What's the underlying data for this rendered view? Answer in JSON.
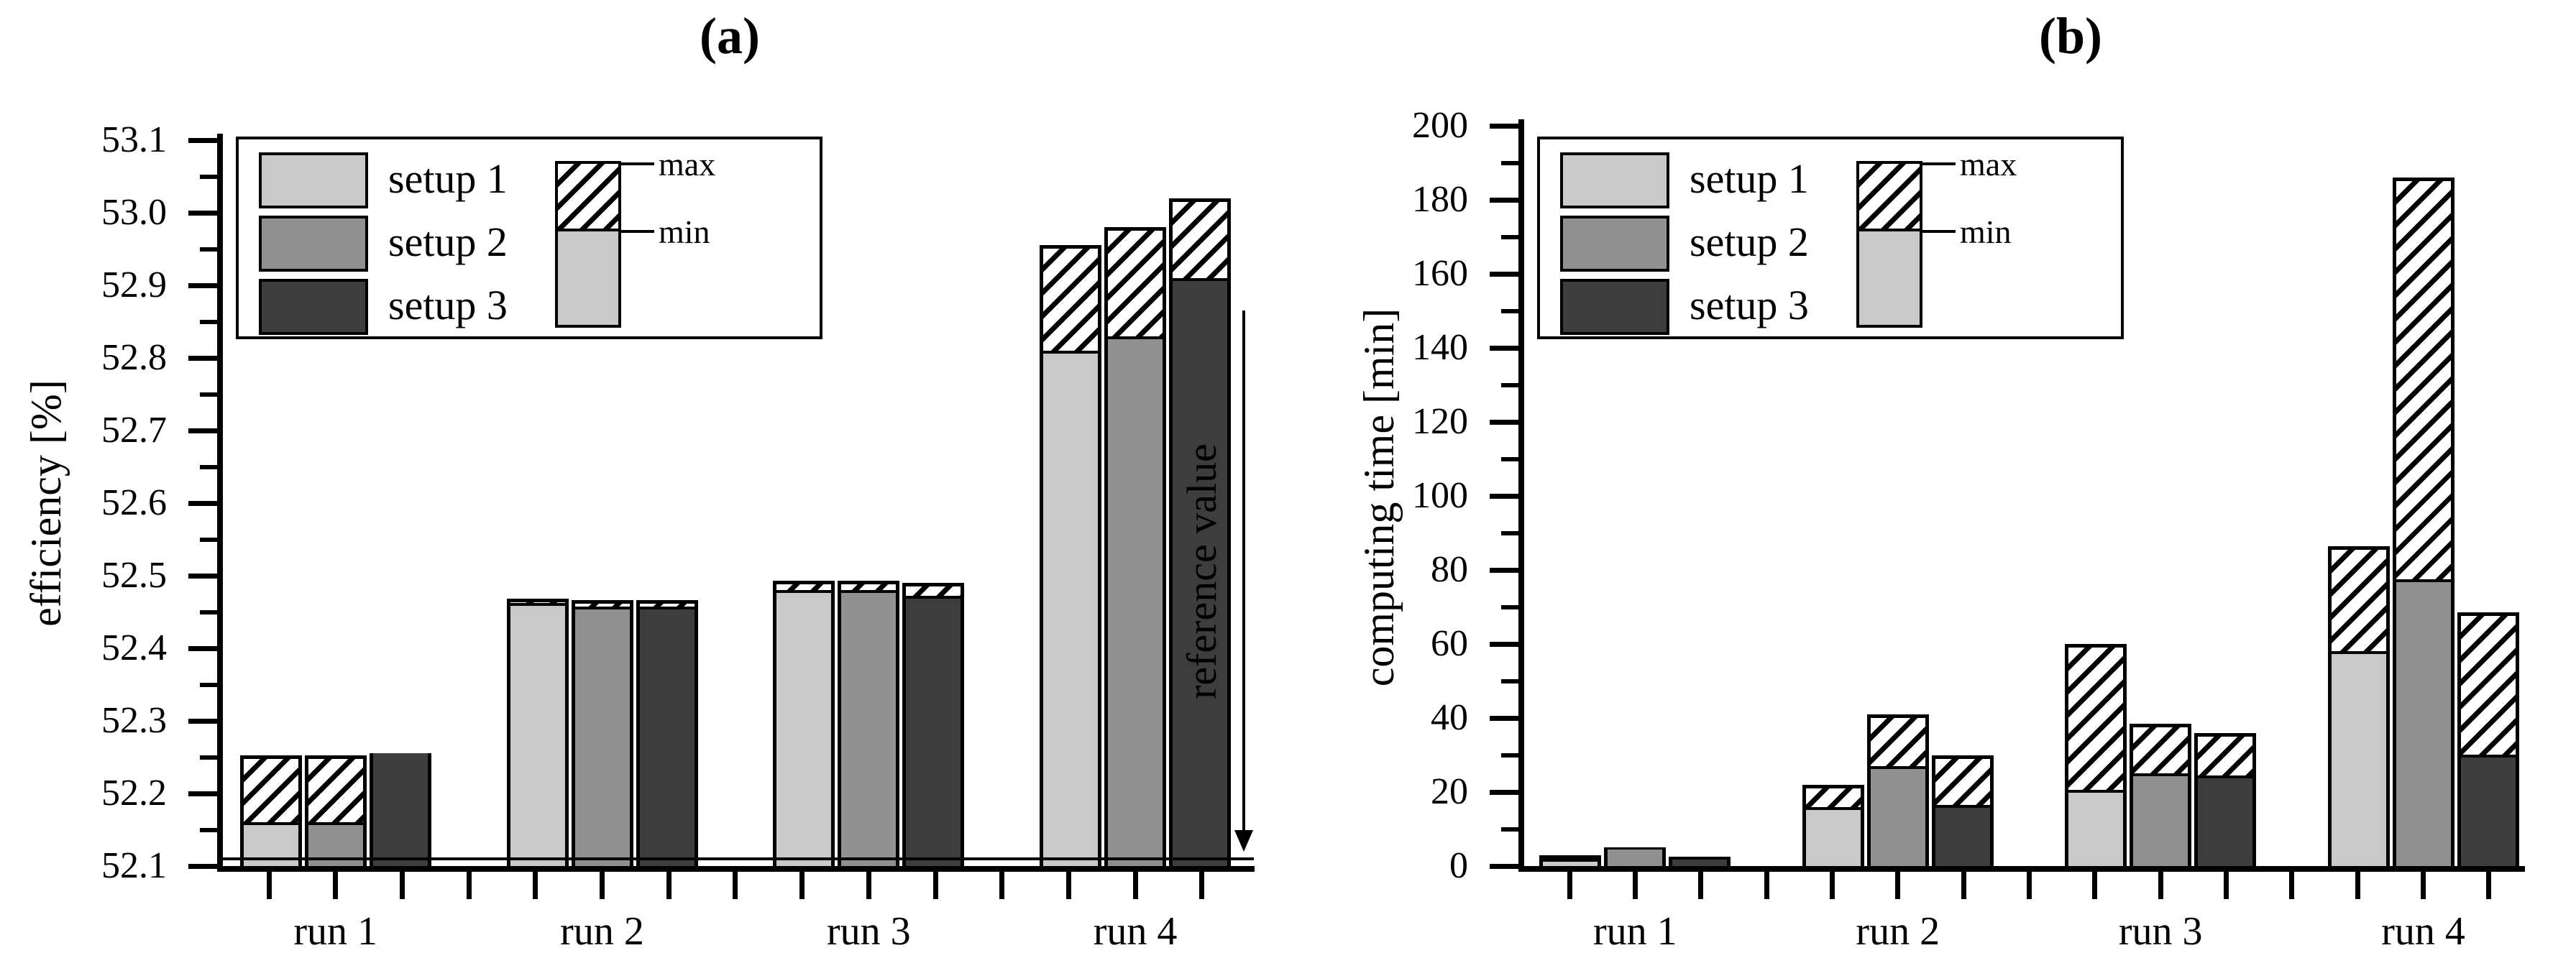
{
  "chart_data": {
    "type": "bar",
    "description": "Grouped bar charts with solid bars showing minimum values and hatched caps showing maximum values",
    "legend_position": "top-left",
    "grid": false,
    "charts": [
      {
        "id": "a",
        "title": "(a)",
        "ylabel": "efficiency [%]",
        "ylim": [
          52.1,
          53.1
        ],
        "ytick_labels": [
          "52.1",
          "52.2",
          "52.3",
          "52.4",
          "52.5",
          "52.6",
          "52.7",
          "52.8",
          "52.9",
          "53.0",
          "53.1"
        ],
        "categories": [
          "run 1",
          "run 2",
          "run 3",
          "run 4"
        ],
        "series": [
          {
            "name": "setup 1",
            "min": [
              52.16,
              52.462,
              52.48,
              52.81
            ],
            "max": [
              52.252,
              52.468,
              52.493,
              52.955
            ]
          },
          {
            "name": "setup 2",
            "min": [
              52.16,
              52.457,
              52.48,
              52.83
            ],
            "max": [
              52.252,
              52.466,
              52.493,
              52.98
            ]
          },
          {
            "name": "setup 3",
            "min": [
              52.255,
              52.457,
              52.472,
              52.91
            ],
            "max": [
              52.255,
              52.466,
              52.49,
              53.02
            ]
          }
        ],
        "reference": {
          "label": "reference value",
          "value": 52.11
        },
        "legend": {
          "items": [
            "setup 1",
            "setup 2",
            "setup 3"
          ],
          "max_label": "max",
          "min_label": "min"
        }
      },
      {
        "id": "b",
        "title": "(b)",
        "ylabel": "computing time [min]",
        "ylim": [
          0,
          200
        ],
        "ytick_labels": [
          "0",
          "20",
          "40",
          "60",
          "80",
          "100",
          "120",
          "140",
          "160",
          "180",
          "200"
        ],
        "categories": [
          "run 1",
          "run 2",
          "run 3",
          "run 4"
        ],
        "series": [
          {
            "name": "setup 1",
            "min": [
              2,
              16,
              20.5,
              58
            ],
            "max": [
              3,
              22,
              60,
              86.5
            ]
          },
          {
            "name": "setup 2",
            "min": [
              4.4,
              27,
              25,
              77.5
            ],
            "max": [
              5,
              41,
              38.5,
              186
            ]
          },
          {
            "name": "setup 3",
            "min": [
              1.8,
              16.5,
              24.5,
              30
            ],
            "max": [
              2.6,
              30,
              36,
              68.5
            ]
          }
        ],
        "legend": {
          "items": [
            "setup 1",
            "setup 2",
            "setup 3"
          ],
          "max_label": "max",
          "min_label": "min"
        }
      }
    ]
  },
  "colors": {
    "setup1": "#c9c9c9",
    "setup2": "#909090",
    "setup3": "#3d3d3d",
    "hatch": "#000000",
    "background": "#ffffff"
  }
}
